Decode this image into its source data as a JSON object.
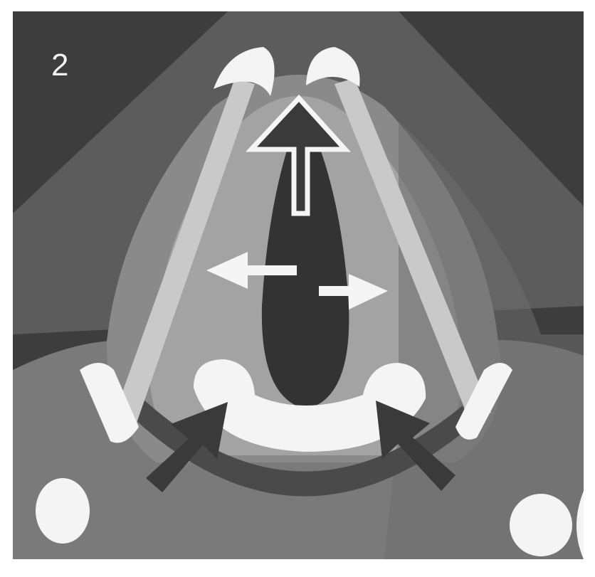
{
  "panel_label": "2",
  "colors": {
    "frame": "#ffffff",
    "background_dark": "#3d3d3d",
    "band": "#5c5c5c",
    "tissue_mid": "#8a8a8a",
    "tissue_light": "#a3a3a3",
    "lumen": "#333333",
    "cord": "#c9c9c9",
    "cartilage": "#f4f4f4",
    "arrow_light": "#f5f5f5",
    "arrow_dark": "#3a3a3a"
  },
  "arrows": [
    {
      "id": "open-up-arrow",
      "direction": "up",
      "style": "outlined"
    },
    {
      "id": "left-arrow",
      "direction": "left",
      "style": "solid-light"
    },
    {
      "id": "right-arrow",
      "direction": "right",
      "style": "solid-light"
    },
    {
      "id": "lower-left-arrow",
      "direction": "up-right",
      "style": "solid-dark"
    },
    {
      "id": "lower-right-arrow",
      "direction": "up-left",
      "style": "solid-dark"
    }
  ]
}
